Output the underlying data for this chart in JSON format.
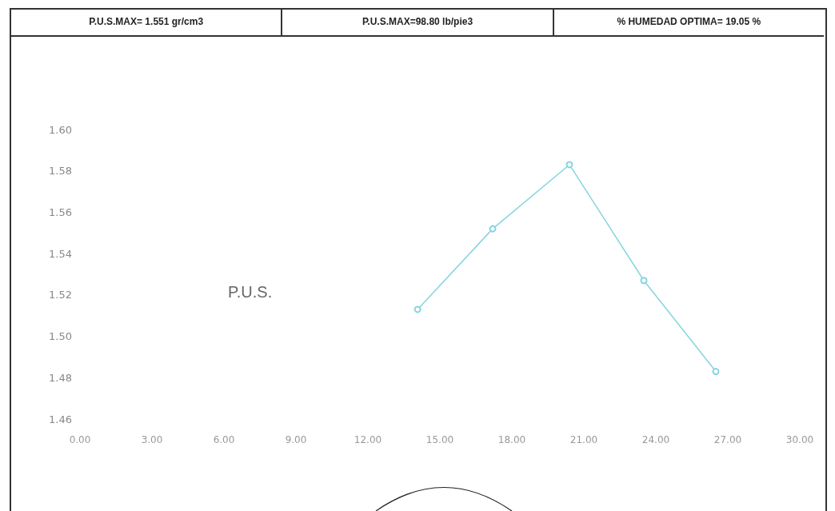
{
  "chart_data": {
    "type": "line",
    "annotations": [
      "P.U.S.MAX= 1.551 gr/cm3",
      "P.U.S.MAX=98.80 lb/pie3",
      "% HUMEDAD OPTIMA= 19.05 %"
    ],
    "ylabel": "P.U.S.",
    "x": [
      14.07,
      17.2,
      20.4,
      23.5,
      26.5
    ],
    "series": [
      {
        "color": "#86d4e0",
        "values": [
          1.513,
          1.552,
          1.583,
          1.527,
          1.483
        ]
      }
    ],
    "xlim": [
      0,
      30
    ],
    "xticks": [
      {
        "value": 0,
        "label": "0.00"
      },
      {
        "value": 3,
        "label": "3.00"
      },
      {
        "value": 6,
        "label": "6.00"
      },
      {
        "value": 9,
        "label": "9.00"
      },
      {
        "value": 12,
        "label": "12.00"
      },
      {
        "value": 15,
        "label": "15.00"
      },
      {
        "value": 18,
        "label": "18.00"
      },
      {
        "value": 21,
        "label": "21.00"
      },
      {
        "value": 24,
        "label": "24.00"
      },
      {
        "value": 27,
        "label": "27.00"
      },
      {
        "value": 30,
        "label": "30.00"
      }
    ],
    "ylim": [
      1.46,
      1.6
    ],
    "yticks": [
      {
        "value": 1.46,
        "label": "1.46"
      },
      {
        "value": 1.48,
        "label": "1.48"
      },
      {
        "value": 1.5,
        "label": "1.50"
      },
      {
        "value": 1.52,
        "label": "1.52"
      },
      {
        "value": 1.54,
        "label": "1.54"
      },
      {
        "value": 1.56,
        "label": "1.56"
      },
      {
        "value": 1.58,
        "label": "1.58"
      },
      {
        "value": 1.6,
        "label": "1.60"
      }
    ],
    "grid": false,
    "marker": "circle",
    "line_style": "solid"
  }
}
